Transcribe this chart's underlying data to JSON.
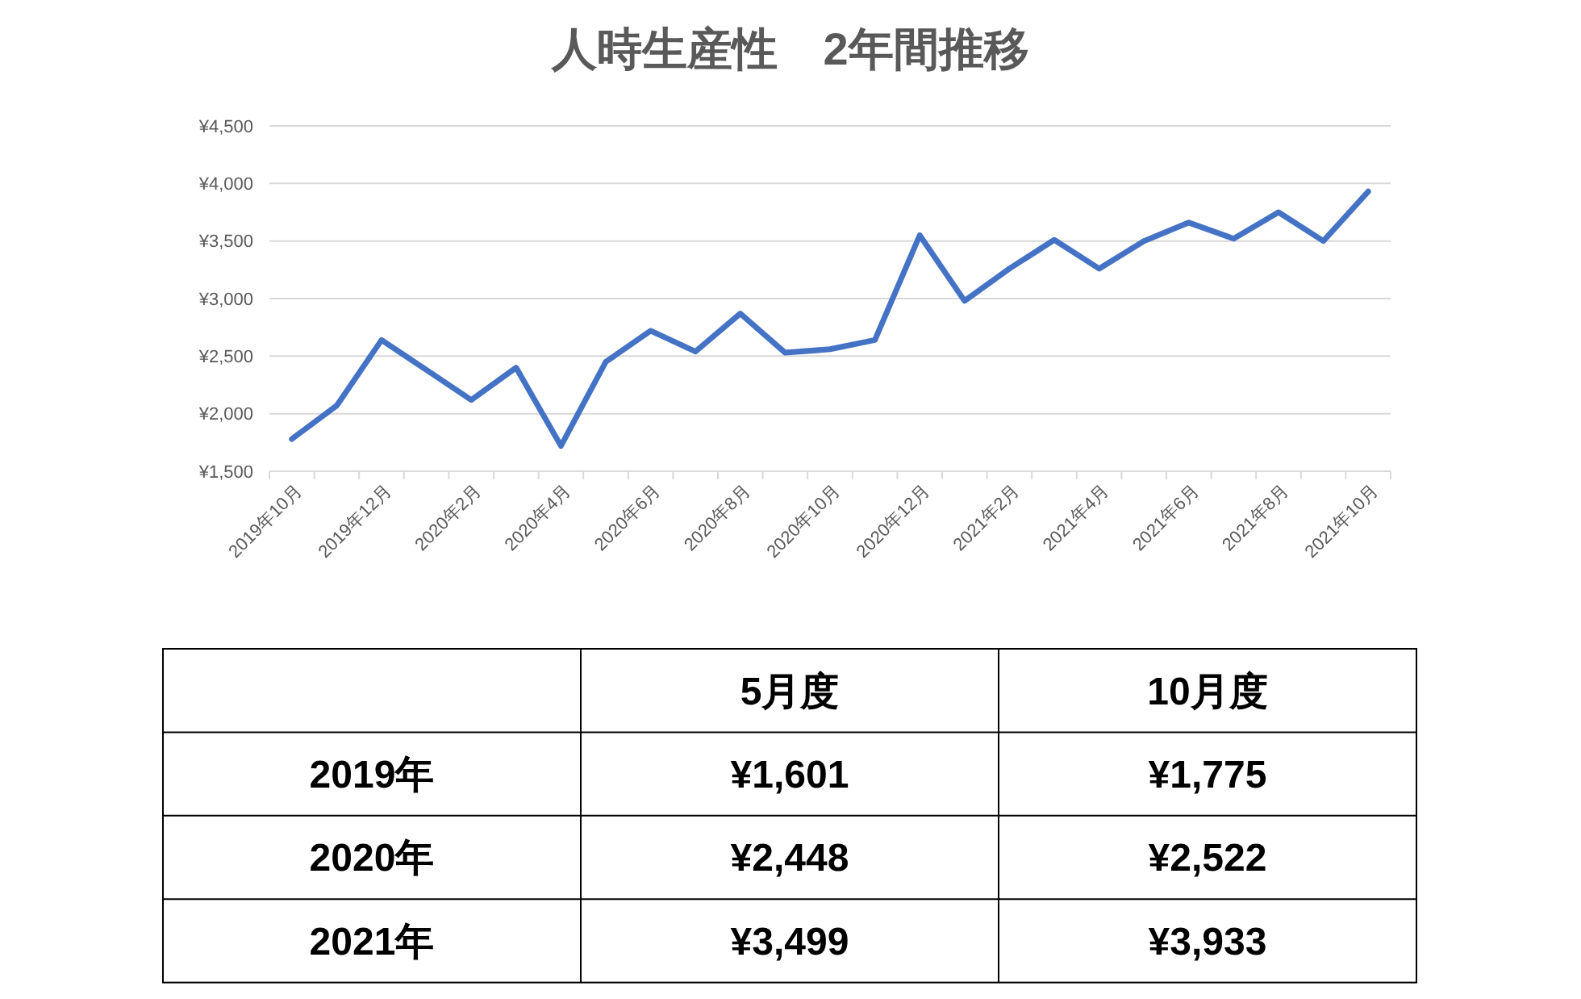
{
  "chart_data": [
    {
      "type": "line",
      "title": "人時生産性　2年間推移",
      "categories": [
        "2019年10月",
        null,
        "2019年12月",
        null,
        "2020年2月",
        null,
        "2020年4月",
        null,
        "2020年6月",
        null,
        "2020年8月",
        null,
        "2020年10月",
        null,
        "2020年12月",
        null,
        "2021年2月",
        null,
        "2021年4月",
        null,
        "2021年6月",
        null,
        "2021年8月",
        null,
        "2021年10月"
      ],
      "series": [
        {
          "color": "#4472c4",
          "values": [
            1780,
            2070,
            2640,
            2380,
            2120,
            2400,
            1720,
            2450,
            2720,
            2540,
            2870,
            2530,
            2560,
            2640,
            3550,
            2980,
            3260,
            3510,
            3260,
            3500,
            3660,
            3520,
            3750,
            3500,
            3930
          ]
        }
      ],
      "ylim": [
        1500,
        4500
      ],
      "yticks": [
        {
          "value": 1500,
          "label": "¥1,500"
        },
        {
          "value": 2000,
          "label": "¥2,000"
        },
        {
          "value": 2500,
          "label": "¥2,500"
        },
        {
          "value": 3000,
          "label": "¥3,000"
        },
        {
          "value": 3500,
          "label": "¥3,500"
        },
        {
          "value": 4000,
          "label": "¥4,000"
        },
        {
          "value": 4500,
          "label": "¥4,500"
        }
      ],
      "grid": "y",
      "marker": "none",
      "line_style": "solid"
    },
    {
      "type": "other",
      "categories": [
        null,
        "5月度",
        "10月度"
      ],
      "y_categories": [
        "2019年",
        "2020年",
        "2021年"
      ],
      "annotations": [
        "¥1,601",
        "¥1,775",
        "¥2,448",
        "¥2,522",
        "¥3,499",
        "¥3,933"
      ]
    }
  ]
}
